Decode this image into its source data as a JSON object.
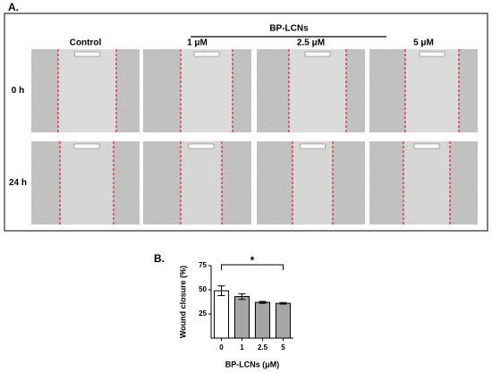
{
  "panel_a": {
    "label": "A.",
    "group_label": "BP-LCNs",
    "columns": [
      "Control",
      "1 μM",
      "2.5 μM",
      "5 μM"
    ],
    "rows": [
      "0 h",
      "24 h"
    ]
  },
  "chart_data": {
    "type": "bar",
    "panel_label": "B.",
    "ylabel": "Wound closure (%)",
    "xlabel": "BP-LCNs (μM)",
    "categories": [
      "0",
      "1",
      "2.5",
      "5"
    ],
    "values": [
      49,
      43,
      37,
      36
    ],
    "errors": [
      5,
      3,
      1,
      0.8
    ],
    "colors": [
      "#ffffff",
      "#a6a6a6",
      "#a6a6a6",
      "#a6a6a6"
    ],
    "ylim": [
      0,
      75
    ],
    "yticks": [
      25,
      50,
      75
    ],
    "annotation": "*"
  }
}
